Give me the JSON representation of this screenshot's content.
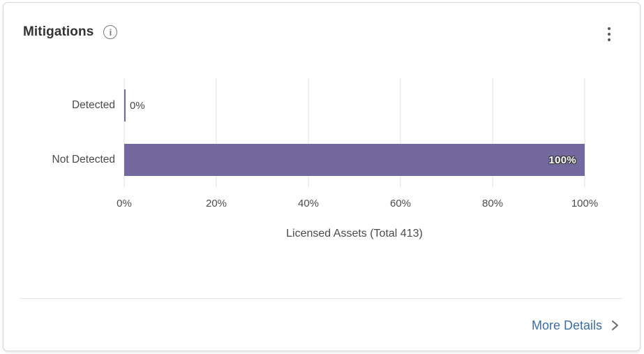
{
  "card": {
    "title": "Mitigations"
  },
  "chart_data": {
    "type": "bar",
    "orientation": "horizontal",
    "title": "Mitigations",
    "categories": [
      "Detected",
      "Not Detected"
    ],
    "values": [
      0,
      100
    ],
    "value_labels": [
      "0%",
      "100%"
    ],
    "x_ticks": [
      "0%",
      "20%",
      "40%",
      "60%",
      "80%",
      "100%"
    ],
    "xlim": [
      0,
      100
    ],
    "xlabel": "Licensed Assets (Total 413)",
    "total_assets": 413,
    "bar_color": "#73699e",
    "grid": true,
    "legend_position": "none"
  },
  "footer": {
    "more_details_label": "More Details"
  },
  "colors": {
    "bar": "#73699e",
    "link": "#3a6ea5",
    "title_text": "#333333",
    "axis_text": "#4d4d4d",
    "grid_line": "#e2e2e2",
    "card_border": "#d9d9d9",
    "divider": "#e8e8e8",
    "icon_gray": "#787878"
  },
  "icons": {
    "info_glyph": "i"
  }
}
